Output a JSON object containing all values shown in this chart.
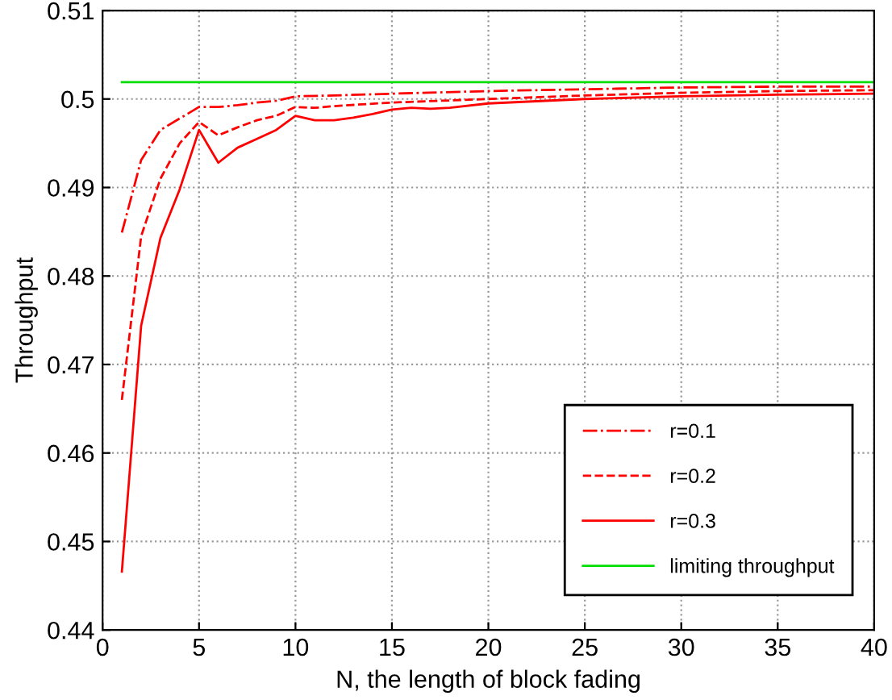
{
  "chart_data": {
    "type": "line",
    "xlabel": "N, the length of block fading",
    "ylabel": "Throughput",
    "xlim": [
      0,
      40
    ],
    "ylim": [
      0.44,
      0.51
    ],
    "xticks": [
      0,
      5,
      10,
      15,
      20,
      25,
      30,
      35,
      40
    ],
    "yticks": [
      0.44,
      0.45,
      0.46,
      0.47,
      0.48,
      0.49,
      {
        "value": 0.5,
        "label": "0.5"
      },
      0.51
    ],
    "grid": true,
    "legend": "bottom right",
    "marker": "none",
    "series": [
      {
        "name": "r=0.1",
        "color": "#ff0000",
        "line_style": "dashdot",
        "x": [
          1,
          2,
          3,
          4,
          5,
          6,
          7,
          8,
          9,
          10,
          12,
          15,
          20,
          25,
          30,
          35,
          40
        ],
        "values": [
          0.4849,
          0.4931,
          0.4965,
          0.4978,
          0.4991,
          0.4991,
          0.4993,
          0.4996,
          0.4998,
          0.5003,
          0.5004,
          0.5006,
          0.5009,
          0.5011,
          0.5013,
          0.5014,
          0.5014
        ]
      },
      {
        "name": "r=0.2",
        "color": "#ff0000",
        "line_style": "dashed",
        "x": [
          1,
          2,
          3,
          4,
          5,
          6,
          7,
          8,
          9,
          10,
          11,
          12,
          15,
          20,
          25,
          30,
          35,
          40
        ],
        "values": [
          0.466,
          0.4845,
          0.491,
          0.495,
          0.4974,
          0.4959,
          0.4968,
          0.4976,
          0.4981,
          0.4991,
          0.499,
          0.4992,
          0.4996,
          0.5,
          0.5004,
          0.5007,
          0.5009,
          0.501
        ]
      },
      {
        "name": "r=0.3",
        "color": "#ff0000",
        "line_style": "solid",
        "x": [
          1,
          2,
          3,
          4,
          5,
          6,
          7,
          8,
          9,
          10,
          11,
          12,
          13,
          14,
          15,
          16,
          17,
          18,
          20,
          25,
          30,
          35,
          40
        ],
        "values": [
          0.4466,
          0.4744,
          0.4843,
          0.4898,
          0.4965,
          0.4928,
          0.4945,
          0.4955,
          0.4965,
          0.4981,
          0.4976,
          0.4976,
          0.4979,
          0.4983,
          0.4988,
          0.499,
          0.4989,
          0.499,
          0.4995,
          0.5,
          0.5003,
          0.5005,
          0.5006
        ]
      },
      {
        "name": "limiting throughput",
        "color": "#00dd00",
        "line_style": "solid",
        "x": [
          1,
          40
        ],
        "values": [
          0.5019,
          0.5019
        ]
      }
    ]
  }
}
